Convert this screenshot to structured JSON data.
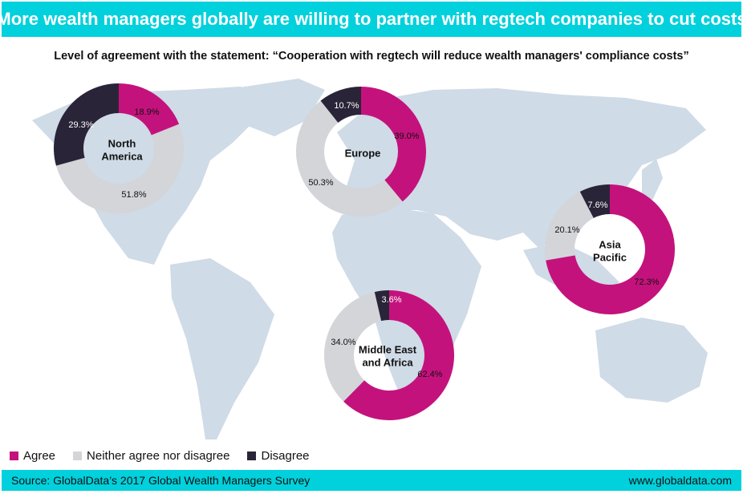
{
  "title": "More wealth managers globally are willing to partner with regtech companies to cut costs",
  "subtitle": "Level of agreement with the statement: “Cooperation with regtech will reduce wealth managers' compliance  costs”",
  "colors": {
    "agree": "#c4127d",
    "neither": "#d3d5d9",
    "disagree": "#2a2438",
    "banner": "#00d1dc",
    "map": "#cfdbe6"
  },
  "legend": {
    "agree": "Agree",
    "neither": "Neither agree nor disagree",
    "disagree": "Disagree"
  },
  "footer": {
    "source": "Source: GlobalData’s 2017 Global Wealth Managers Survey",
    "site": "www.globaldata.com"
  },
  "chart_data": {
    "type": "pie",
    "variant": "donut",
    "categories": [
      "Agree",
      "Neither agree nor disagree",
      "Disagree"
    ],
    "series": [
      {
        "name": "North America",
        "label_lines": [
          "North",
          "America"
        ],
        "values": [
          18.9,
          51.8,
          29.3
        ],
        "labels": [
          "18.9%",
          "51.8%",
          "29.3%"
        ]
      },
      {
        "name": "Europe",
        "label_lines": [
          "Europe"
        ],
        "values": [
          39.0,
          50.3,
          10.7
        ],
        "labels": [
          "39.0%",
          "50.3%",
          "10.7%"
        ]
      },
      {
        "name": "Asia Pacific",
        "label_lines": [
          "Asia",
          "Pacific"
        ],
        "values": [
          72.3,
          20.1,
          7.6
        ],
        "labels": [
          "72.3%",
          "20.1%",
          "7.6%"
        ]
      },
      {
        "name": "Middle East and Africa",
        "label_lines": [
          "Middle East",
          "and Africa"
        ],
        "values": [
          62.4,
          34.0,
          3.6
        ],
        "labels": [
          "62.4%",
          "34.0%",
          "3.6%"
        ]
      }
    ],
    "legend_position": "bottom-left"
  }
}
